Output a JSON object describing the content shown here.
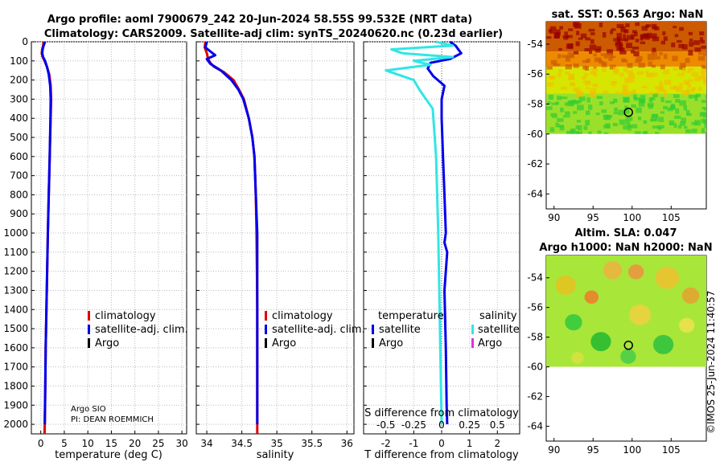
{
  "title_line1": "Argo profile: aoml 7900679_242 20-Jun-2024 58.55S 99.532E (NRT data)",
  "title_line2": "Climatology: CARS2009. Satellite-adj clim: synTS_20240620.nc (0.23d earlier)",
  "credit_org": "Argo SIO",
  "credit_pi": "PI: DEAN ROEMMICH",
  "watermark": "©IMOS 25-Jun-2024 11:40:57",
  "colors": {
    "climatology": "#e00000",
    "satellite": "#0000ee",
    "argo": "#000000",
    "sat_salinity": "#33e5e5",
    "argo_salinity": "#dd33dd"
  },
  "chart_data": [
    {
      "type": "line",
      "id": "temperature",
      "xlabel": "temperature (deg C)",
      "ylabel": "",
      "xlim": [
        -2,
        31
      ],
      "ylim": [
        2050,
        0
      ],
      "xticks": [
        0,
        5,
        10,
        15,
        20,
        25,
        30
      ],
      "xtick_labels": [
        "0",
        "5",
        "10",
        "15",
        "20",
        "25",
        "30"
      ],
      "yticks": [
        0,
        100,
        200,
        300,
        400,
        500,
        600,
        700,
        800,
        900,
        1000,
        1100,
        1200,
        1300,
        1400,
        1500,
        1600,
        1700,
        1800,
        1900,
        2000
      ],
      "ytick_labels": [
        "0",
        "100",
        "200",
        "300",
        "400",
        "500",
        "600",
        "700",
        "800",
        "900",
        "1000",
        "1100",
        "1200",
        "1300",
        "1400",
        "1500",
        "1600",
        "1700",
        "1800",
        "1900",
        "2000"
      ],
      "legend": [
        "climatology",
        "satellite-adj. clim.",
        "Argo"
      ],
      "series": [
        {
          "name": "climatology",
          "x": [
            0.6,
            0.5,
            0.3,
            0.2,
            0.4,
            0.8,
            1.3,
            1.8,
            2.1,
            2.2,
            2.1,
            1.9,
            1.7,
            1.5,
            1.35,
            1.2,
            1.05,
            0.95,
            0.85,
            0.8
          ],
          "y": [
            0,
            20,
            40,
            60,
            80,
            100,
            130,
            170,
            230,
            300,
            400,
            600,
            800,
            1000,
            1200,
            1400,
            1600,
            1800,
            1980,
            2050
          ]
        },
        {
          "name": "satellite-adj. clim.",
          "x": [
            0.9,
            0.6,
            0.4,
            0.3,
            0.5,
            0.9,
            1.3,
            1.7,
            2.0,
            2.1,
            2.05,
            1.9,
            1.7,
            1.5,
            1.35,
            1.2,
            1.05,
            0.95,
            0.88,
            0.85
          ],
          "y": [
            0,
            20,
            40,
            60,
            80,
            100,
            130,
            170,
            230,
            300,
            400,
            600,
            800,
            1000,
            1200,
            1400,
            1600,
            1800,
            1960,
            2000
          ]
        }
      ]
    },
    {
      "type": "line",
      "id": "salinity",
      "xlabel": "salinity",
      "ylabel": "",
      "xlim": [
        33.85,
        36.1
      ],
      "ylim": [
        2050,
        0
      ],
      "xticks": [
        34,
        34.5,
        35,
        35.5,
        36
      ],
      "xtick_labels": [
        "34",
        "34.5",
        "35",
        "35.5",
        "36"
      ],
      "legend": [
        "climatology",
        "satellite-adj. clim.",
        "Argo"
      ],
      "series": [
        {
          "name": "climatology",
          "x": [
            33.98,
            33.97,
            34.0,
            34.02,
            34.05,
            34.1,
            34.25,
            34.38,
            34.46,
            34.53,
            34.6,
            34.65,
            34.68,
            34.7,
            34.71,
            34.715,
            34.72,
            34.72,
            34.72,
            34.72
          ],
          "y": [
            0,
            30,
            60,
            90,
            110,
            130,
            160,
            200,
            250,
            300,
            400,
            500,
            600,
            800,
            1000,
            1200,
            1400,
            1600,
            1800,
            2050
          ]
        },
        {
          "name": "satellite-adj. clim.",
          "x": [
            34.0,
            33.98,
            34.05,
            34.12,
            34.0,
            34.05,
            34.2,
            34.35,
            34.45,
            34.52,
            34.6,
            34.65,
            34.68,
            34.7,
            34.72,
            34.72,
            34.72,
            34.72,
            34.72,
            34.72
          ],
          "y": [
            0,
            30,
            50,
            70,
            90,
            115,
            150,
            200,
            250,
            300,
            400,
            500,
            600,
            800,
            1000,
            1200,
            1400,
            1600,
            1800,
            2000
          ]
        }
      ]
    },
    {
      "type": "line",
      "id": "difference",
      "xlabel": "T difference from climatology",
      "ylabel": "",
      "xlim": [
        -2.8,
        2.8
      ],
      "ylim": [
        2050,
        0
      ],
      "xticks": [
        -2,
        -1,
        0,
        1,
        2
      ],
      "xtick_labels": [
        "-2",
        "-1",
        "0",
        "1",
        "2"
      ],
      "top_axis_label": "S difference from climatology",
      "top_ticks": [
        -0.5,
        -0.25,
        0,
        0.25,
        0.5
      ],
      "top_tick_labels": [
        "-0.5",
        "-0.25",
        "0",
        "0.25",
        "0.5"
      ],
      "legend_temperature_header": "temperature",
      "legend_salinity_header": "salinity",
      "legend_temperature": [
        "satellite",
        "Argo"
      ],
      "legend_salinity": [
        "satellite",
        "Argo"
      ],
      "series": [
        {
          "name": "T satellite",
          "x": [
            0.3,
            0.5,
            0.7,
            0.3,
            -0.4,
            -0.5,
            -0.3,
            0.1,
            0.0,
            0.0,
            0.05,
            0.1,
            0.15,
            0.1,
            0.2,
            0.1,
            0.15,
            0.18,
            0.2
          ],
          "y": [
            0,
            20,
            60,
            90,
            110,
            140,
            180,
            230,
            300,
            400,
            600,
            800,
            1000,
            1050,
            1100,
            1300,
            1600,
            1900,
            2000
          ]
        },
        {
          "name": "S satellite",
          "x": [
            -0.05,
            0.1,
            -0.45,
            -0.35,
            0.1,
            -0.25,
            -0.1,
            -0.5,
            -0.25,
            -0.2,
            -0.08,
            -0.05,
            -0.03,
            0.0
          ],
          "y": [
            0,
            20,
            40,
            60,
            80,
            100,
            120,
            150,
            200,
            250,
            350,
            600,
            1000,
            2000
          ]
        }
      ]
    },
    {
      "type": "heatmap",
      "id": "sst_map",
      "title": "sat. SST: 0.563 Argo: NaN",
      "xlim": [
        89,
        109.5
      ],
      "ylim": [
        -65,
        -52.5
      ],
      "xticks": [
        90,
        95,
        100,
        105
      ],
      "xtick_labels": [
        "90",
        "95",
        "100",
        "105"
      ],
      "yticks": [
        -54,
        -56,
        -58,
        -60,
        -62,
        -64
      ],
      "ytick_labels": [
        "-54",
        "-56",
        "-58",
        "-60",
        "-62",
        "-64"
      ],
      "data_extent_lat": [
        -60,
        -52.5
      ],
      "float_position": {
        "lon": 99.532,
        "lat": -58.55
      },
      "color_bands": [
        {
          "lat_from": -52.5,
          "lat_to": -54.5,
          "color": "#cc5a00",
          "accent": "#990000"
        },
        {
          "lat_from": -54.5,
          "lat_to": -55.5,
          "color": "#ee8a00",
          "accent": "#cc5a00"
        },
        {
          "lat_from": -55.5,
          "lat_to": -57.3,
          "color": "#d6e600",
          "accent": "#f0c000"
        },
        {
          "lat_from": -57.3,
          "lat_to": -60,
          "color": "#9ae02a",
          "accent": "#33cc33"
        }
      ]
    },
    {
      "type": "heatmap",
      "id": "sla_map",
      "title_line1": "Altim. SLA: 0.047",
      "title_line2": "Argo h1000: NaN h2000: NaN",
      "xlim": [
        89,
        109.5
      ],
      "ylim": [
        -65,
        -52.5
      ],
      "xticks": [
        90,
        95,
        100,
        105
      ],
      "xtick_labels": [
        "90",
        "95",
        "100",
        "105"
      ],
      "yticks": [
        -54,
        -56,
        -58,
        -60,
        -62,
        -64
      ],
      "ytick_labels": [
        "-54",
        "-56",
        "-58",
        "-60",
        "-62",
        "-64"
      ],
      "data_extent_lat": [
        -60,
        -52.5
      ],
      "float_position": {
        "lon": 99.532,
        "lat": -58.55
      },
      "base_color": "#a8e63a",
      "blobs": [
        {
          "lon": 91.5,
          "lat": -54.5,
          "r": 1.3,
          "color": "#e8c020"
        },
        {
          "lon": 94.8,
          "lat": -55.3,
          "r": 0.9,
          "color": "#ee7a2a"
        },
        {
          "lon": 97.5,
          "lat": -53.5,
          "r": 1.2,
          "color": "#f0b040"
        },
        {
          "lon": 100.5,
          "lat": -53.6,
          "r": 1.0,
          "color": "#f09040"
        },
        {
          "lon": 104.5,
          "lat": -54.0,
          "r": 1.5,
          "color": "#f0c030"
        },
        {
          "lon": 107.5,
          "lat": -55.2,
          "r": 1.1,
          "color": "#e8a030"
        },
        {
          "lon": 92.5,
          "lat": -57.0,
          "r": 1.1,
          "color": "#30c840"
        },
        {
          "lon": 96.0,
          "lat": -58.3,
          "r": 1.3,
          "color": "#22b830"
        },
        {
          "lon": 101.0,
          "lat": -56.5,
          "r": 1.4,
          "color": "#f0d040"
        },
        {
          "lon": 104.0,
          "lat": -58.5,
          "r": 1.3,
          "color": "#2cc040"
        },
        {
          "lon": 107.0,
          "lat": -57.2,
          "r": 1.0,
          "color": "#f0e050"
        },
        {
          "lon": 99.5,
          "lat": -59.3,
          "r": 1.0,
          "color": "#48cc48"
        },
        {
          "lon": 93.0,
          "lat": -59.4,
          "r": 0.8,
          "color": "#d8e040"
        }
      ]
    }
  ]
}
